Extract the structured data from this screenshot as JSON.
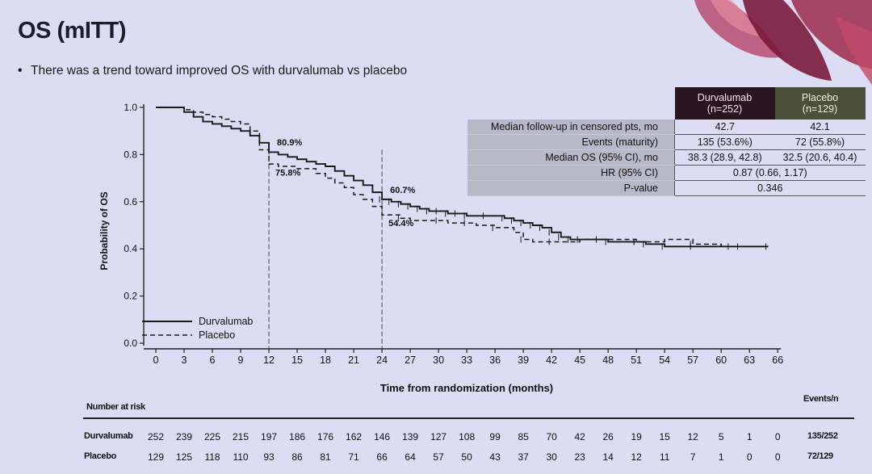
{
  "slide": {
    "title": "OS (mITT)",
    "bullet": "There was a trend toward improved OS with durvalumab vs placebo"
  },
  "colors": {
    "background": "#dcdcf4",
    "durvalumab_header": "#2a1420",
    "placebo_header": "#4c5036",
    "petal_dark": "#8a1f42",
    "petal_light": "#c9566f"
  },
  "summary_table": {
    "headers": [
      {
        "name": "Durvalumab",
        "n": "(n=252)"
      },
      {
        "name": "Placebo",
        "n": "(n=129)"
      }
    ],
    "rows": [
      {
        "label": "Median follow-up in censored pts, mo",
        "durvalumab": "42.7",
        "placebo": "42.1"
      },
      {
        "label": "Events (maturity)",
        "durvalumab": "135 (53.6%)",
        "placebo": "72 (55.8%)"
      },
      {
        "label": "Median OS (95% CI), mo",
        "durvalumab": "38.3 (28.9, 42.8)",
        "placebo": "32.5 (20.6, 40.4)"
      },
      {
        "label": "HR (95% CI)",
        "combined": "0.87 (0.66, 1.17)"
      },
      {
        "label": "P-value",
        "combined": "0.346"
      }
    ]
  },
  "chart_data": {
    "type": "line",
    "subtype": "kaplan-meier",
    "xlabel": "Time from randomization (months)",
    "ylabel": "Probability of OS",
    "xlim": [
      0,
      66
    ],
    "ylim": [
      0,
      1
    ],
    "x_ticks": [
      0,
      3,
      6,
      9,
      12,
      15,
      18,
      21,
      24,
      27,
      30,
      33,
      36,
      39,
      42,
      45,
      48,
      51,
      54,
      57,
      60,
      63,
      66
    ],
    "y_ticks": [
      "0.0",
      "0.2",
      "0.4",
      "0.6",
      "0.8",
      "1.0"
    ],
    "series": [
      {
        "name": "Durvalumab",
        "style": "solid",
        "points": [
          [
            0,
            1.0
          ],
          [
            2,
            1.0
          ],
          [
            3,
            0.98
          ],
          [
            4,
            0.96
          ],
          [
            5,
            0.94
          ],
          [
            6,
            0.93
          ],
          [
            7,
            0.92
          ],
          [
            8,
            0.91
          ],
          [
            9,
            0.9
          ],
          [
            10,
            0.88
          ],
          [
            11,
            0.85
          ],
          [
            12,
            0.81
          ],
          [
            13,
            0.8
          ],
          [
            14,
            0.79
          ],
          [
            15,
            0.78
          ],
          [
            16,
            0.77
          ],
          [
            17,
            0.76
          ],
          [
            18,
            0.75
          ],
          [
            19,
            0.73
          ],
          [
            20,
            0.71
          ],
          [
            21,
            0.69
          ],
          [
            22,
            0.67
          ],
          [
            23,
            0.64
          ],
          [
            24,
            0.61
          ],
          [
            25,
            0.6
          ],
          [
            26,
            0.59
          ],
          [
            27,
            0.58
          ],
          [
            28,
            0.57
          ],
          [
            29,
            0.56
          ],
          [
            30,
            0.56
          ],
          [
            31,
            0.55
          ],
          [
            32,
            0.55
          ],
          [
            33,
            0.54
          ],
          [
            35,
            0.54
          ],
          [
            37,
            0.53
          ],
          [
            38,
            0.52
          ],
          [
            39,
            0.51
          ],
          [
            40,
            0.5
          ],
          [
            41,
            0.49
          ],
          [
            42,
            0.47
          ],
          [
            43,
            0.45
          ],
          [
            44,
            0.44
          ],
          [
            47,
            0.44
          ],
          [
            48,
            0.43
          ],
          [
            51,
            0.43
          ],
          [
            52,
            0.42
          ],
          [
            54,
            0.41
          ],
          [
            57,
            0.41
          ],
          [
            62,
            0.41
          ],
          [
            65,
            0.41
          ]
        ]
      },
      {
        "name": "Placebo",
        "style": "dashed",
        "points": [
          [
            0,
            1.0
          ],
          [
            2,
            1.0
          ],
          [
            3,
            0.99
          ],
          [
            4,
            0.98
          ],
          [
            5,
            0.97
          ],
          [
            6,
            0.96
          ],
          [
            7,
            0.95
          ],
          [
            8,
            0.94
          ],
          [
            9,
            0.93
          ],
          [
            10,
            0.9
          ],
          [
            11,
            0.82
          ],
          [
            12,
            0.76
          ],
          [
            13,
            0.75
          ],
          [
            15,
            0.74
          ],
          [
            17,
            0.72
          ],
          [
            18,
            0.7
          ],
          [
            19,
            0.68
          ],
          [
            20,
            0.66
          ],
          [
            21,
            0.63
          ],
          [
            22,
            0.61
          ],
          [
            23,
            0.58
          ],
          [
            24,
            0.544
          ],
          [
            26,
            0.53
          ],
          [
            27,
            0.52
          ],
          [
            30,
            0.52
          ],
          [
            31,
            0.51
          ],
          [
            33,
            0.51
          ],
          [
            34,
            0.5
          ],
          [
            36,
            0.49
          ],
          [
            38,
            0.47
          ],
          [
            39,
            0.44
          ],
          [
            40,
            0.43
          ],
          [
            42,
            0.43
          ],
          [
            44,
            0.43
          ],
          [
            45,
            0.44
          ],
          [
            50,
            0.44
          ],
          [
            51,
            0.43
          ],
          [
            54,
            0.44
          ],
          [
            57,
            0.42
          ],
          [
            60,
            0.41
          ],
          [
            61,
            0.41
          ]
        ]
      }
    ],
    "annotations": [
      {
        "text": "80.9%",
        "x": 12,
        "y": 0.809,
        "series": "Durvalumab"
      },
      {
        "text": "75.8%",
        "x": 12,
        "y": 0.758,
        "series": "Placebo"
      },
      {
        "text": "60.7%",
        "x": 24,
        "y": 0.607,
        "series": "Durvalumab"
      },
      {
        "text": "54.4%",
        "x": 24,
        "y": 0.544,
        "series": "Placebo"
      }
    ],
    "legend": {
      "position": "bottom-left",
      "entries": [
        "Durvalumab",
        "Placebo"
      ]
    }
  },
  "risk_table": {
    "title": "Number at risk",
    "events_title": "Events/n",
    "times": [
      0,
      3,
      6,
      9,
      12,
      15,
      18,
      21,
      24,
      27,
      30,
      33,
      36,
      39,
      42,
      45,
      48,
      51,
      54,
      57,
      60,
      63,
      66
    ],
    "rows": [
      {
        "name": "Durvalumab",
        "counts": [
          "252",
          "239",
          "225",
          "215",
          "197",
          "186",
          "176",
          "162",
          "146",
          "139",
          "127",
          "108",
          "99",
          "85",
          "70",
          "42",
          "26",
          "19",
          "15",
          "12",
          "5",
          "1",
          "0"
        ],
        "events": "135/252"
      },
      {
        "name": "Placebo",
        "counts": [
          "129",
          "125",
          "118",
          "110",
          "93",
          "86",
          "81",
          "71",
          "66",
          "64",
          "57",
          "50",
          "43",
          "37",
          "30",
          "23",
          "14",
          "12",
          "11",
          "7",
          "1",
          "0",
          "0"
        ],
        "events": "72/129"
      }
    ]
  }
}
